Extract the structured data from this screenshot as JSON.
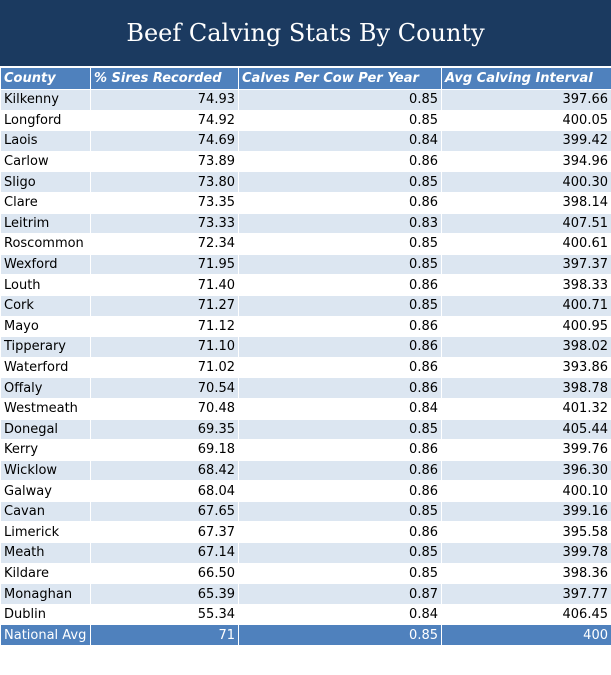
{
  "title": "Beef Calving Stats By County",
  "columns": [
    "County",
    "% Sires Recorded",
    "Calves Per Cow Per Year",
    "Avg Calving Interval"
  ],
  "rows": [
    [
      "Kilkenny",
      "74.93",
      "0.85",
      "397.66"
    ],
    [
      "Longford",
      "74.92",
      "0.85",
      "400.05"
    ],
    [
      "Laois",
      "74.69",
      "0.84",
      "399.42"
    ],
    [
      "Carlow",
      "73.89",
      "0.86",
      "394.96"
    ],
    [
      "Sligo",
      "73.80",
      "0.85",
      "400.30"
    ],
    [
      "Clare",
      "73.35",
      "0.86",
      "398.14"
    ],
    [
      "Leitrim",
      "73.33",
      "0.83",
      "407.51"
    ],
    [
      "Roscommon",
      "72.34",
      "0.85",
      "400.61"
    ],
    [
      "Wexford",
      "71.95",
      "0.85",
      "397.37"
    ],
    [
      "Louth",
      "71.40",
      "0.86",
      "398.33"
    ],
    [
      "Cork",
      "71.27",
      "0.85",
      "400.71"
    ],
    [
      "Mayo",
      "71.12",
      "0.86",
      "400.95"
    ],
    [
      "Tipperary",
      "71.10",
      "0.86",
      "398.02"
    ],
    [
      "Waterford",
      "71.02",
      "0.86",
      "393.86"
    ],
    [
      "Offaly",
      "70.54",
      "0.86",
      "398.78"
    ],
    [
      "Westmeath",
      "70.48",
      "0.84",
      "401.32"
    ],
    [
      "Donegal",
      "69.35",
      "0.85",
      "405.44"
    ],
    [
      "Kerry",
      "69.18",
      "0.86",
      "399.76"
    ],
    [
      "Wicklow",
      "68.42",
      "0.86",
      "396.30"
    ],
    [
      "Galway",
      "68.04",
      "0.86",
      "400.10"
    ],
    [
      "Cavan",
      "67.65",
      "0.85",
      "399.16"
    ],
    [
      "Limerick",
      "67.37",
      "0.86",
      "395.58"
    ],
    [
      "Meath",
      "67.14",
      "0.85",
      "399.78"
    ],
    [
      "Kildare",
      "66.50",
      "0.85",
      "398.36"
    ],
    [
      "Monaghan",
      "65.39",
      "0.87",
      "397.77"
    ],
    [
      "Dublin",
      "55.34",
      "0.84",
      "406.45"
    ]
  ],
  "footer": [
    "National Avg",
    "71",
    "0.85",
    "400"
  ]
}
